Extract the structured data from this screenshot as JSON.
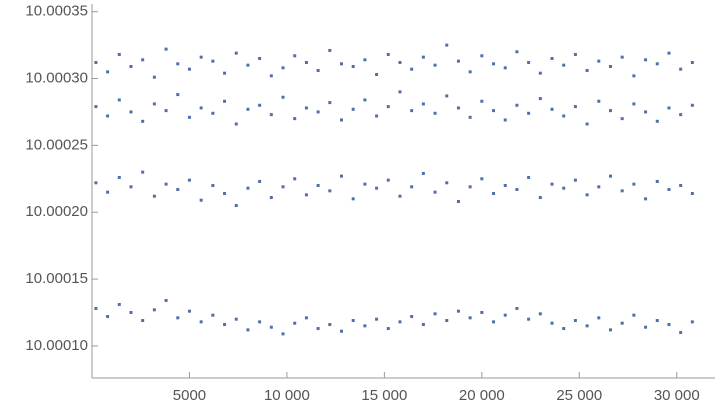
{
  "chart_data": {
    "type": "scatter",
    "color": "#4f6fa8",
    "xlim": [
      0,
      31500
    ],
    "ylim": [
      10.000076,
      10.000355
    ],
    "xticks": [
      5000,
      {
        "value": 10000,
        "label": "10 000"
      },
      {
        "value": 15000,
        "label": "15 000"
      },
      {
        "value": 20000,
        "label": "20 000"
      },
      {
        "value": 25000,
        "label": "25 000"
      },
      {
        "value": 30000,
        "label": "30 000"
      }
    ],
    "yticks": [
      {
        "value": 10.0001,
        "label": "10.00010"
      },
      10.00015,
      {
        "value": 10.0002,
        "label": "10.00020"
      },
      10.00025,
      {
        "value": 10.0003,
        "label": "10.00030"
      },
      10.00035
    ],
    "x": [
      200,
      800,
      1400,
      2000,
      2600,
      3200,
      3800,
      4400,
      5000,
      5600,
      6200,
      6800,
      7400,
      8000,
      8600,
      9200,
      9800,
      10400,
      11000,
      11600,
      12200,
      12800,
      13400,
      14000,
      14600,
      15200,
      15800,
      16400,
      17000,
      17600,
      18200,
      18800,
      19400,
      20000,
      20600,
      21200,
      21800,
      22400,
      23000,
      23600,
      24200,
      24800,
      25400,
      26000,
      26600,
      27200,
      27800,
      28400,
      29000,
      29600,
      30200,
      30800
    ],
    "series": [
      {
        "color": "#4f6fa8",
        "values": [
          10.000312,
          10.000305,
          10.000318,
          10.000309,
          10.000314,
          10.000301,
          10.000322,
          10.000311,
          10.000307,
          10.000316,
          10.000313,
          10.000304,
          10.000319,
          10.00031,
          10.000315,
          10.000302,
          10.000308,
          10.000317,
          10.000312,
          10.000306,
          10.000321,
          10.000311,
          10.000309,
          10.000314,
          10.000303,
          10.000318,
          10.000312,
          10.000307,
          10.000316,
          10.00031,
          10.000325,
          10.000313,
          10.000305,
          10.000317,
          10.000311,
          10.000308,
          10.00032,
          10.000312,
          10.000304,
          10.000315,
          10.00031,
          10.000318,
          10.000306,
          10.000313,
          10.000309,
          10.000316,
          10.000302,
          10.000314,
          10.000311,
          10.000319,
          10.000307,
          10.000312
        ]
      },
      {
        "color": "#4f6fa8",
        "values": [
          10.000279,
          10.000272,
          10.000284,
          10.000275,
          10.000268,
          10.000281,
          10.000276,
          10.000288,
          10.000271,
          10.000278,
          10.000274,
          10.000283,
          10.000266,
          10.000277,
          10.00028,
          10.000273,
          10.000286,
          10.00027,
          10.000278,
          10.000275,
          10.000282,
          10.000269,
          10.000277,
          10.000284,
          10.000272,
          10.000279,
          10.00029,
          10.000276,
          10.000281,
          10.000274,
          10.000287,
          10.000278,
          10.000271,
          10.000283,
          10.000276,
          10.000269,
          10.00028,
          10.000274,
          10.000285,
          10.000277,
          10.000272,
          10.000279,
          10.000266,
          10.000283,
          10.000276,
          10.00027,
          10.000281,
          10.000275,
          10.000268,
          10.000278,
          10.000273,
          10.00028
        ]
      },
      {
        "color": "#4f6fa8",
        "values": [
          10.000222,
          10.000215,
          10.000226,
          10.000219,
          10.00023,
          10.000212,
          10.000221,
          10.000217,
          10.000224,
          10.000209,
          10.00022,
          10.000214,
          10.000205,
          10.000218,
          10.000223,
          10.000211,
          10.000219,
          10.000225,
          10.000213,
          10.00022,
          10.000216,
          10.000227,
          10.00021,
          10.000221,
          10.000218,
          10.000224,
          10.000212,
          10.000219,
          10.000229,
          10.000215,
          10.000222,
          10.000208,
          10.000219,
          10.000225,
          10.000214,
          10.00022,
          10.000217,
          10.000226,
          10.000211,
          10.000221,
          10.000218,
          10.000224,
          10.000213,
          10.000219,
          10.000227,
          10.000216,
          10.000221,
          10.00021,
          10.000223,
          10.000217,
          10.00022,
          10.000214
        ]
      },
      {
        "color": "#4f6fa8",
        "values": [
          10.000128,
          10.000122,
          10.000131,
          10.000125,
          10.000119,
          10.000127,
          10.000134,
          10.000121,
          10.000126,
          10.000118,
          10.000123,
          10.000116,
          10.00012,
          10.000112,
          10.000118,
          10.000114,
          10.000109,
          10.000117,
          10.000121,
          10.000113,
          10.000116,
          10.000111,
          10.000119,
          10.000115,
          10.00012,
          10.000113,
          10.000118,
          10.000122,
          10.000116,
          10.000124,
          10.000119,
          10.000126,
          10.000121,
          10.000125,
          10.000118,
          10.000123,
          10.000128,
          10.00012,
          10.000124,
          10.000117,
          10.000113,
          10.000119,
          10.000115,
          10.000121,
          10.000112,
          10.000117,
          10.000123,
          10.000114,
          10.000119,
          10.000116,
          10.00011,
          10.000118
        ]
      }
    ]
  }
}
